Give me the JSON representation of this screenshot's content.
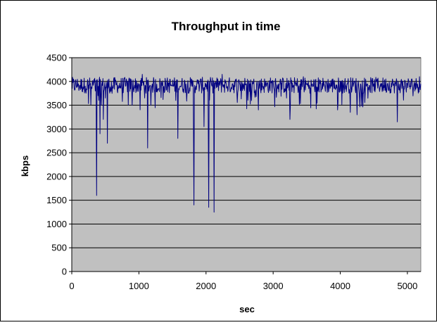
{
  "chart_data": {
    "type": "line",
    "title": "Throughput in time",
    "xlabel": "sec",
    "ylabel": "kbps",
    "xlim": [
      0,
      5200
    ],
    "ylim": [
      0,
      4500
    ],
    "x_ticks": [
      0,
      1000,
      2000,
      3000,
      4000,
      5000
    ],
    "y_ticks": [
      0,
      500,
      1000,
      1500,
      2000,
      2500,
      3000,
      3500,
      4000,
      4500
    ],
    "grid": "horizontal",
    "legend": "none",
    "plot_background": "#c0c0c0",
    "line_color": "#000080",
    "series": [
      {
        "baseline": 3920,
        "noise_range": [
          3700,
          4150
        ],
        "x": [
          0,
          100,
          200,
          300,
          350,
          370,
          390,
          420,
          440,
          470,
          500,
          530,
          560,
          600,
          700,
          800,
          900,
          1000,
          1050,
          1100,
          1130,
          1160,
          1200,
          1300,
          1400,
          1500,
          1550,
          1580,
          1620,
          1700,
          1780,
          1820,
          1850,
          1880,
          1940,
          1970,
          2000,
          2040,
          2060,
          2090,
          2120,
          2150,
          2200,
          2240,
          2300,
          2400,
          2500,
          2600,
          2700,
          2780,
          2800,
          2900,
          3000,
          3100,
          3200,
          3250,
          3300,
          3400,
          3450,
          3500,
          3600,
          3700,
          3800,
          3900,
          3960,
          4000,
          4100,
          4150,
          4200,
          4250,
          4300,
          4400,
          4500,
          4550,
          4600,
          4700,
          4800,
          4850,
          4900,
          5000,
          5100,
          5150,
          5180,
          5200
        ],
        "y": [
          4050,
          3950,
          3900,
          3850,
          3800,
          1600,
          3700,
          2900,
          3500,
          3200,
          3650,
          2700,
          3800,
          3750,
          3850,
          3900,
          3500,
          3950,
          4150,
          3900,
          2600,
          3900,
          3950,
          3850,
          3950,
          3900,
          3600,
          2800,
          3900,
          3950,
          3900,
          1400,
          3900,
          3950,
          3900,
          3050,
          3950,
          1350,
          3950,
          3900,
          1250,
          3950,
          4000,
          4150,
          3950,
          3950,
          3950,
          3950,
          3950,
          3400,
          3950,
          3900,
          4000,
          3950,
          3650,
          3200,
          3900,
          3950,
          4100,
          3950,
          3900,
          3950,
          3950,
          3950,
          3400,
          4000,
          3950,
          3350,
          3950,
          3300,
          3950,
          3950,
          3950,
          4050,
          3950,
          3950,
          3950,
          3150,
          3950,
          3950,
          3950,
          3950,
          4100,
          3950
        ]
      }
    ]
  }
}
